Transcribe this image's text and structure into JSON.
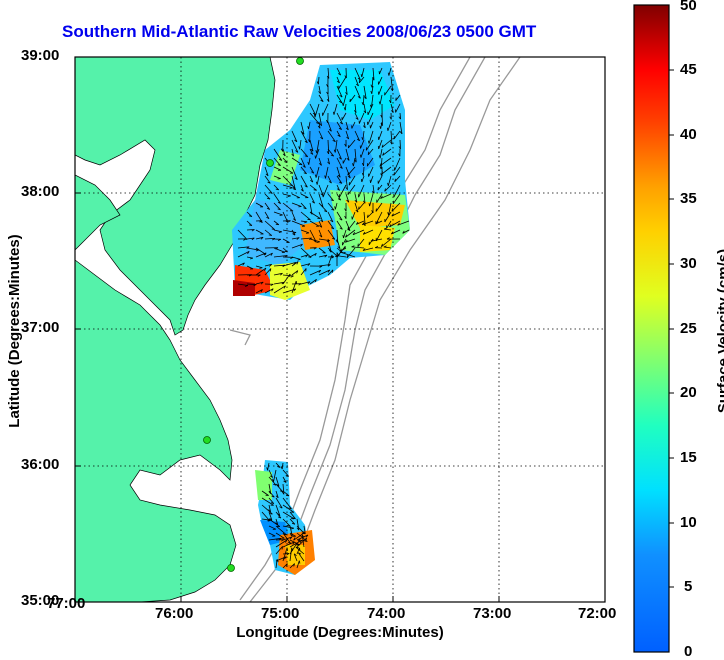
{
  "title": "Southern Mid-Atlantic Raw Velocities 2008/06/23 0500 GMT",
  "xlabel": "Longitude (Degrees:Minutes)",
  "ylabel": "Latitude (Degrees:Minutes)",
  "colorbar_label": "Surface Velocity (cm/s)",
  "x_ticks": [
    "77:00",
    "76:00",
    "75:00",
    "74:00",
    "73:00",
    "72:00"
  ],
  "y_ticks": [
    "39:00",
    "38:00",
    "37:00",
    "36:00",
    "35:00"
  ],
  "colorbar_ticks": [
    "50",
    "45",
    "40",
    "35",
    "30",
    "25",
    "20",
    "15",
    "10",
    "5",
    "0"
  ],
  "colors": {
    "land": "#55f2aa",
    "title": "#0000ee",
    "grid": "#000000",
    "bathymetry": "#999999",
    "station": "#22dd22"
  },
  "chart_data": {
    "type": "heatmap",
    "title": "Southern Mid-Atlantic Raw Velocities 2008/06/23 0500 GMT",
    "xlabel": "Longitude (Degrees:Minutes)",
    "ylabel": "Latitude (Degrees:Minutes)",
    "xlim": [
      -77,
      -72
    ],
    "ylim": [
      35,
      39
    ],
    "colorbar": {
      "label": "Surface Velocity (cm/s)",
      "range": [
        0,
        50
      ],
      "colormap": "jet"
    },
    "grid": true
  }
}
